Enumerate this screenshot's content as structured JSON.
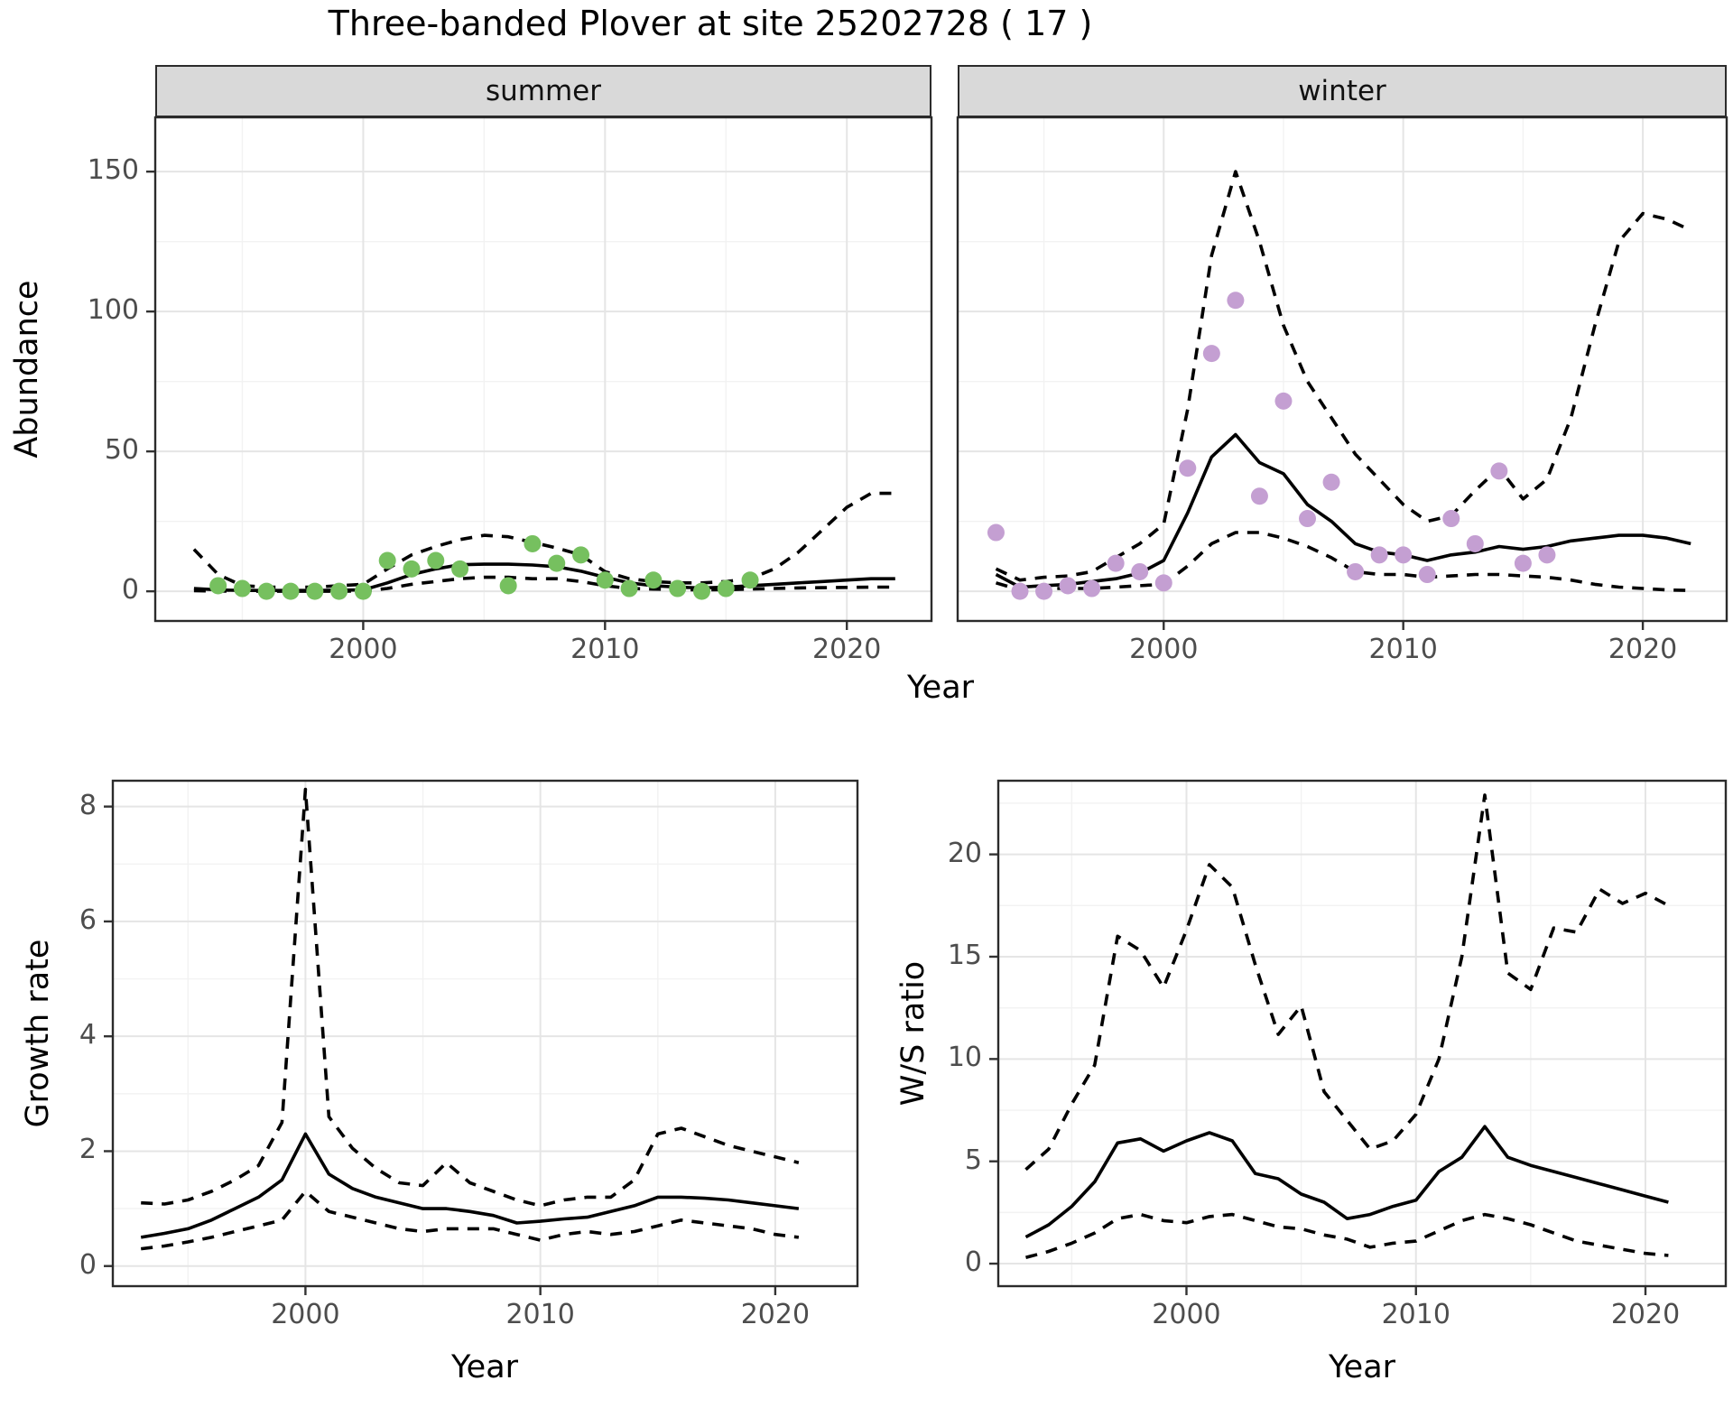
{
  "chart_data": {
    "title": "Three-banded Plover at site 25202728 ( 17 )",
    "top_row_shared_xlabel": "Year",
    "panels": [
      {
        "id": "abundance-summer",
        "type": "line",
        "facet": "summer",
        "xlabel": "Year",
        "ylabel": "Abundance",
        "xlim": [
          1991.4,
          2023.5
        ],
        "ylim": [
          -10.6,
          169.4
        ],
        "xticks": [
          2000,
          2010,
          2020
        ],
        "xminor": [
          1995,
          2005,
          2015
        ],
        "yticks": [
          0,
          50,
          100,
          150
        ],
        "yminor": [
          25,
          75,
          125
        ],
        "line_x": [
          1993,
          1994,
          1995,
          1996,
          1997,
          1998,
          1999,
          2000,
          2001,
          2002,
          2003,
          2004,
          2005,
          2006,
          2007,
          2008,
          2009,
          2010,
          2011,
          2012,
          2013,
          2014,
          2015,
          2016,
          2017,
          2018,
          2019,
          2020,
          2021,
          2022
        ],
        "series": [
          {
            "name": "fitted-median",
            "style": "solid",
            "y": [
              1,
              0.5,
              0.3,
              0.3,
              0.3,
              0.3,
              0.4,
              0.5,
              3,
              6,
              8,
              9.5,
              9.7,
              9.7,
              9.4,
              8.8,
              7.2,
              5,
              3,
              2,
              1.5,
              1.2,
              1.5,
              2,
              2.5,
              3,
              3.5,
              4,
              4.5,
              4.5
            ]
          },
          {
            "name": "upper-credible",
            "style": "dashed",
            "y": [
              15,
              6,
              2,
              1.5,
              1.5,
              1.5,
              2,
              2.5,
              8,
              13,
              16,
              18.5,
              20,
              19.5,
              17.5,
              15.5,
              13,
              7,
              4.5,
              3.5,
              3,
              3,
              3.5,
              4.5,
              8,
              14,
              22,
              30,
              35,
              35
            ]
          },
          {
            "name": "lower-credible",
            "style": "dashed",
            "y": [
              0.2,
              0.1,
              0,
              0,
              0,
              0,
              0,
              0.1,
              1,
              2.5,
              3.5,
              4.5,
              5,
              5,
              4.5,
              4.5,
              3.5,
              2,
              1,
              0.8,
              0.6,
              0.5,
              0.6,
              0.8,
              1,
              1.2,
              1.3,
              1.4,
              1.5,
              1.5
            ]
          }
        ],
        "points": {
          "name": "observed-counts-summer",
          "color": "#76C05F",
          "x": [
            1994,
            1995,
            1996,
            1997,
            1998,
            1999,
            2000,
            2001,
            2002,
            2003,
            2004,
            2006,
            2007,
            2008,
            2009,
            2010,
            2011,
            2012,
            2013,
            2014,
            2015,
            2016
          ],
          "y": [
            2,
            1,
            0,
            0,
            0,
            0,
            0,
            11,
            8,
            11,
            8,
            2,
            17,
            10,
            13,
            4,
            1,
            4,
            1,
            0,
            1,
            4
          ]
        }
      },
      {
        "id": "abundance-winter",
        "type": "line",
        "facet": "winter",
        "xlabel": "Year",
        "ylabel": "Abundance",
        "xlim": [
          1991.4,
          2023.5
        ],
        "ylim": [
          -10.6,
          169.4
        ],
        "xticks": [
          2000,
          2010,
          2020
        ],
        "xminor": [
          1995,
          2005,
          2015
        ],
        "yticks": [
          0,
          50,
          100,
          150
        ],
        "yminor": [
          25,
          75,
          125
        ],
        "line_x": [
          1993,
          1994,
          1995,
          1996,
          1997,
          1998,
          1999,
          2000,
          2001,
          2002,
          2003,
          2004,
          2005,
          2006,
          2007,
          2008,
          2009,
          2010,
          2011,
          2012,
          2013,
          2014,
          2015,
          2016,
          2017,
          2018,
          2019,
          2020,
          2021,
          2022
        ],
        "series": [
          {
            "name": "fitted-median",
            "style": "solid",
            "y": [
              6,
              1.5,
              2,
              2.5,
              3.5,
              4.5,
              6.5,
              11,
              28,
              48,
              56,
              46,
              42,
              31,
              25,
              17,
              14,
              13,
              11,
              13,
              14,
              16,
              15,
              16,
              18,
              19,
              20,
              20,
              19,
              17
            ]
          },
          {
            "name": "upper-credible",
            "style": "dashed",
            "y": [
              8,
              4,
              5,
              5.5,
              7,
              12,
              17,
              24,
              65,
              120,
              150,
              125,
              95,
              75,
              62,
              49,
              40,
              31,
              25,
              27,
              36,
              44,
              33,
              40,
              62,
              95,
              125,
              135,
              133,
              129
            ]
          },
          {
            "name": "lower-credible",
            "style": "dashed",
            "y": [
              3,
              0.5,
              1,
              1,
              1,
              1.5,
              2,
              2.5,
              9,
              17,
              21,
              21,
              19,
              16,
              12,
              7,
              6,
              6,
              5,
              5.5,
              6,
              6,
              5.5,
              5,
              4,
              2.5,
              1.5,
              1,
              0.5,
              0.3
            ]
          }
        ],
        "points": {
          "name": "observed-counts-winter",
          "color": "#C49FD2",
          "x": [
            1993,
            1994,
            1995,
            1996,
            1997,
            1998,
            1999,
            2000,
            2001,
            2002,
            2003,
            2004,
            2005,
            2006,
            2007,
            2008,
            2009,
            2010,
            2011,
            2012,
            2013,
            2014,
            2015,
            2016
          ],
          "y": [
            21,
            0,
            0,
            2,
            1,
            10,
            7,
            3,
            44,
            85,
            104,
            34,
            68,
            26,
            39,
            7,
            13,
            13,
            6,
            26,
            17,
            43,
            10,
            13
          ]
        }
      },
      {
        "id": "growth-rate",
        "type": "line",
        "xlabel": "Year",
        "ylabel": "Growth rate",
        "xlim": [
          1991.8,
          2023.5
        ],
        "ylim": [
          -0.35,
          8.45
        ],
        "xticks": [
          2000,
          2010,
          2020
        ],
        "xminor": [
          1995,
          2005,
          2015
        ],
        "yticks": [
          0,
          2,
          4,
          6,
          8
        ],
        "yminor": [
          1,
          3,
          5,
          7
        ],
        "line_x": [
          1993,
          1994,
          1995,
          1996,
          1997,
          1998,
          1999,
          2000,
          2001,
          2002,
          2003,
          2004,
          2005,
          2006,
          2007,
          2008,
          2009,
          2010,
          2011,
          2012,
          2013,
          2014,
          2015,
          2016,
          2017,
          2018,
          2019,
          2020,
          2021
        ],
        "series": [
          {
            "name": "fitted-median",
            "style": "solid",
            "y": [
              0.5,
              0.57,
              0.65,
              0.8,
              1.0,
              1.2,
              1.5,
              2.3,
              1.6,
              1.35,
              1.2,
              1.1,
              1.0,
              1.0,
              0.95,
              0.88,
              0.75,
              0.78,
              0.82,
              0.85,
              0.95,
              1.05,
              1.2,
              1.2,
              1.18,
              1.15,
              1.1,
              1.05,
              1.0
            ]
          },
          {
            "name": "upper-credible",
            "style": "dashed",
            "y": [
              1.1,
              1.08,
              1.15,
              1.3,
              1.5,
              1.75,
              2.5,
              8.3,
              2.6,
              2.05,
              1.7,
              1.45,
              1.4,
              1.8,
              1.45,
              1.3,
              1.15,
              1.05,
              1.15,
              1.2,
              1.2,
              1.5,
              2.3,
              2.4,
              2.25,
              2.1,
              2.0,
              1.9,
              1.8
            ]
          },
          {
            "name": "lower-credible",
            "style": "dashed",
            "y": [
              0.3,
              0.35,
              0.42,
              0.5,
              0.6,
              0.7,
              0.8,
              1.3,
              0.95,
              0.85,
              0.75,
              0.65,
              0.6,
              0.65,
              0.65,
              0.65,
              0.55,
              0.45,
              0.55,
              0.6,
              0.55,
              0.6,
              0.7,
              0.8,
              0.75,
              0.7,
              0.65,
              0.55,
              0.5
            ]
          }
        ]
      },
      {
        "id": "ws-ratio",
        "type": "line",
        "xlabel": "Year",
        "ylabel": "W/S ratio",
        "xlim": [
          1991.8,
          2023.5
        ],
        "ylim": [
          -1.1,
          23.6
        ],
        "xticks": [
          2000,
          2010,
          2020
        ],
        "xminor": [
          1995,
          2005,
          2015
        ],
        "yticks": [
          0,
          5,
          10,
          15,
          20
        ],
        "yminor": [
          2.5,
          7.5,
          12.5,
          17.5,
          22.5
        ],
        "line_x": [
          1993,
          1994,
          1995,
          1996,
          1997,
          1998,
          1999,
          2000,
          2001,
          2002,
          2003,
          2004,
          2005,
          2006,
          2007,
          2008,
          2009,
          2010,
          2011,
          2012,
          2013,
          2014,
          2015,
          2016,
          2017,
          2018,
          2019,
          2020,
          2021
        ],
        "series": [
          {
            "name": "fitted-median",
            "style": "solid",
            "y": [
              1.3,
              1.9,
              2.8,
              4.0,
              5.9,
              6.1,
              5.5,
              6.0,
              6.4,
              6.0,
              4.4,
              4.15,
              3.4,
              3.0,
              2.2,
              2.4,
              2.8,
              3.1,
              4.5,
              5.2,
              6.7,
              5.2,
              4.8,
              4.5,
              4.2,
              3.9,
              3.6,
              3.3,
              3.0
            ]
          },
          {
            "name": "upper-credible",
            "style": "dashed",
            "y": [
              4.6,
              5.6,
              7.8,
              9.7,
              16.0,
              15.3,
              13.5,
              16.3,
              19.5,
              18.4,
              14.6,
              11.2,
              12.6,
              8.4,
              7.0,
              5.6,
              6.0,
              7.3,
              10.0,
              15.0,
              22.9,
              14.2,
              13.4,
              16.4,
              16.2,
              18.3,
              17.6,
              18.1,
              17.5
            ]
          },
          {
            "name": "lower-credible",
            "style": "dashed",
            "y": [
              0.3,
              0.6,
              1.0,
              1.5,
              2.2,
              2.4,
              2.1,
              2.0,
              2.3,
              2.4,
              2.1,
              1.8,
              1.7,
              1.4,
              1.2,
              0.8,
              1.0,
              1.1,
              1.6,
              2.1,
              2.4,
              2.2,
              1.9,
              1.5,
              1.1,
              0.9,
              0.7,
              0.5,
              0.4
            ]
          }
        ]
      }
    ]
  }
}
